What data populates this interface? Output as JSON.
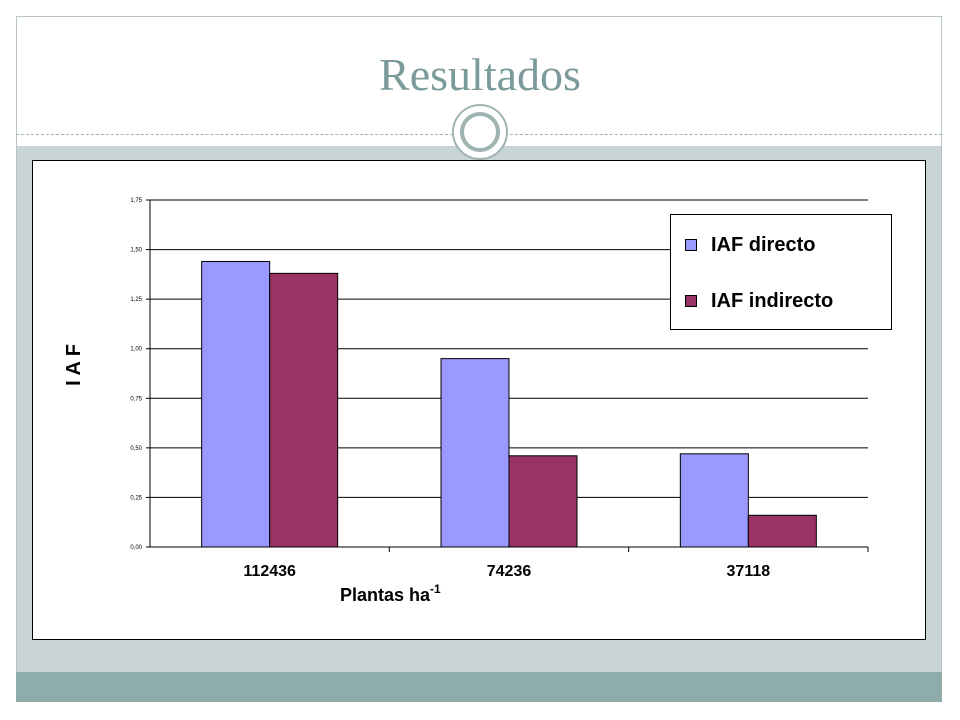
{
  "slide": {
    "title": "Resultados",
    "colors": {
      "title": "#7b9a9a",
      "band": "#c9d4d7",
      "footer": "#8eacac"
    }
  },
  "chart_data": {
    "type": "bar",
    "title": "",
    "ylabel": "I A F",
    "xlabel": "Plantas ha",
    "xlabel_superscript": "-1",
    "categories": [
      "112436",
      "74236",
      "37118"
    ],
    "series": [
      {
        "name": "IAF directo",
        "color": "#9999ff",
        "values": [
          1.44,
          0.95,
          0.47
        ]
      },
      {
        "name": "IAF indirecto",
        "color": "#993366",
        "values": [
          1.38,
          0.46,
          0.16
        ]
      }
    ],
    "ylim": [
      0,
      1.75
    ],
    "yticks": [
      "0,00",
      "0,25",
      "0,50",
      "0,75",
      "1,00",
      "1,25",
      "1,50",
      "1,75"
    ],
    "grid": true,
    "legend_position": "top-right"
  }
}
